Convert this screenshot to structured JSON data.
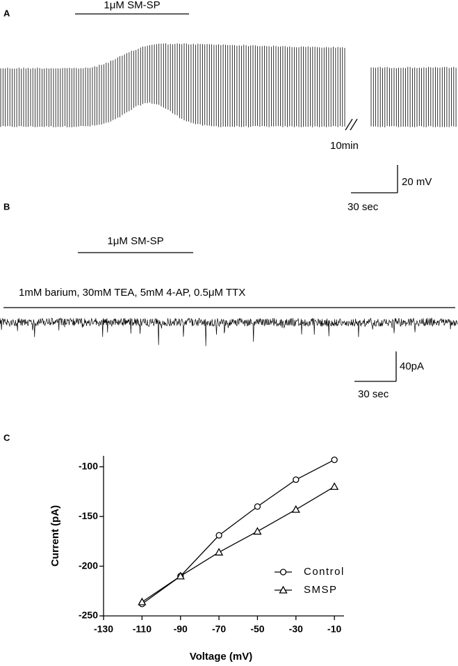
{
  "panel_a": {
    "label": "A",
    "treatment": "1μM SM-SP",
    "gap_label": "10min",
    "scale_y": "20 mV",
    "scale_x": "30 sec"
  },
  "panel_b": {
    "label": "B",
    "treatment": "1μM SM-SP",
    "bath": "1mM barium, 30mM TEA, 5mM 4-AP, 0.5μM TTX",
    "scale_y": "40pA",
    "scale_x": "30 sec"
  },
  "chart_data": {
    "type": "line",
    "panel_label": "C",
    "xlabel": "Voltage (mV)",
    "ylabel": "Current (pA)",
    "x": [
      -110,
      -90,
      -70,
      -50,
      -30,
      -10
    ],
    "series": [
      {
        "name": "Control",
        "color": "#000000",
        "marker": "circle",
        "values": [
          -238,
          -210,
          -169,
          -140,
          -113,
          -93
        ]
      },
      {
        "name": "SMSP",
        "color": "#000000",
        "marker": "triangle",
        "values": [
          -236,
          -210,
          -186,
          -165,
          -143,
          -120
        ]
      }
    ],
    "xlim": [
      -130,
      -5
    ],
    "ylim": [
      -250,
      -89
    ],
    "xticks": [
      -130,
      -110,
      -90,
      -70,
      -50,
      -30,
      -10
    ],
    "yticks": [
      -250,
      -200,
      -150,
      -100
    ],
    "legend": "lower right"
  }
}
